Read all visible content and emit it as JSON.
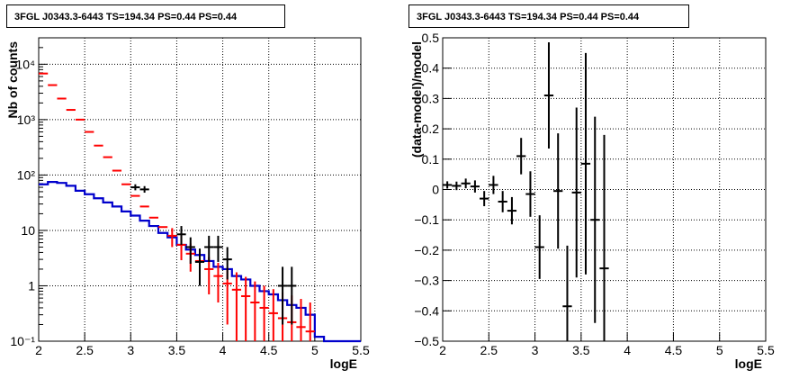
{
  "panels": {
    "left": {
      "title": "3FGL J0343.3-6443 TS=194.34 PS=0.44 PS=0.44"
    },
    "right": {
      "title": "3FGL J0343.3-6443 TS=194.34 PS=0.44 PS=0.44"
    }
  },
  "colors": {
    "data": "#000000",
    "model_total": "#ff0000",
    "background_model": "#0000cc",
    "grid": "#000000"
  },
  "chart_data": [
    {
      "type": "line",
      "title": "3FGL J0343.3-6443 TS=194.34 PS=0.44 PS=0.44",
      "xlabel": "logE",
      "ylabel": "Nb of counts",
      "xlim": [
        2,
        5.5
      ],
      "ylim": [
        0.1,
        30000
      ],
      "yscale": "log",
      "grid": true,
      "xticks": [
        "2",
        "2.5",
        "3",
        "3.5",
        "4",
        "4.5",
        "5",
        "5.5"
      ],
      "yticks": [
        "10⁻¹",
        "1",
        "10",
        "10²",
        "10³",
        "10⁴"
      ],
      "series": [
        {
          "kind": "points_with_errors",
          "color": "black",
          "x": [
            3.05,
            3.15,
            3.55,
            3.65,
            3.75,
            3.85,
            3.95,
            4.05,
            4.65,
            4.75
          ],
          "y": [
            60,
            55,
            8.5,
            5,
            2.7,
            5,
            5,
            3,
            1.0,
            1.0
          ],
          "yerr_low": [
            7,
            7,
            3,
            2.5,
            1.7,
            2.3,
            2.3,
            1.7,
            0.8,
            0.8
          ],
          "yerr_high": [
            8,
            8,
            3.5,
            2.5,
            2.0,
            3,
            3,
            2,
            1.2,
            1.2
          ],
          "xerr": 0.05
        },
        {
          "kind": "points_with_errors",
          "color": "red",
          "x": [
            2.05,
            2.15,
            2.25,
            2.35,
            2.45,
            2.55,
            2.65,
            2.75,
            2.85,
            2.95,
            3.05,
            3.15,
            3.25,
            3.35,
            3.45,
            3.55,
            3.65,
            3.75,
            3.85,
            3.95,
            4.05,
            4.15,
            4.25,
            4.35,
            4.45,
            4.55,
            4.65,
            4.75,
            4.85,
            4.95
          ],
          "y": [
            6800,
            4200,
            2400,
            1500,
            1000,
            600,
            340,
            210,
            120,
            68,
            42,
            27,
            17,
            11.5,
            8,
            5.5,
            3.8,
            2.8,
            2.0,
            1.5,
            1.1,
            0.85,
            0.65,
            0.5,
            0.4,
            0.32,
            0.26,
            0.22,
            0.18,
            0.15
          ],
          "yerr_low": [
            0,
            0,
            0,
            0,
            0,
            0,
            0,
            0,
            0,
            0,
            0,
            0,
            0,
            0,
            3,
            2.6,
            2.0,
            1.6,
            1.3,
            1.0,
            0.9,
            0.75,
            0.6,
            0.48,
            0.4,
            0.32,
            0.26,
            0.22,
            0.18,
            0.15
          ],
          "yerr_high": [
            0,
            0,
            0,
            0,
            0,
            0,
            0,
            0,
            0,
            0,
            0,
            0,
            0,
            0,
            3,
            2.6,
            2.0,
            1.6,
            1.3,
            1.1,
            1.0,
            0.9,
            0.8,
            0.7,
            0.6,
            0.55,
            0.5,
            0.45,
            0.4,
            0.35
          ],
          "xerr": 0.05
        },
        {
          "kind": "step",
          "color": "blue",
          "x_edges": [
            2.0,
            2.1,
            2.2,
            2.3,
            2.4,
            2.5,
            2.6,
            2.7,
            2.8,
            2.9,
            3.0,
            3.1,
            3.2,
            3.3,
            3.4,
            3.5,
            3.6,
            3.7,
            3.8,
            3.9,
            4.0,
            4.1,
            4.2,
            4.3,
            4.4,
            4.5,
            4.6,
            4.7,
            4.8,
            4.9,
            5.0,
            5.1,
            5.2,
            5.3,
            5.4,
            5.5
          ],
          "y": [
            68,
            75,
            72,
            64,
            52,
            45,
            38,
            32,
            27,
            22,
            18.5,
            15,
            12,
            9,
            7.5,
            5.5,
            4.5,
            3.6,
            2.8,
            2.2,
            2.0,
            1.5,
            1.3,
            1.0,
            0.8,
            0.7,
            0.55,
            0.45,
            0.4,
            0.3,
            0.12,
            0.1,
            0.1,
            0.1,
            0.1
          ]
        }
      ]
    },
    {
      "type": "scatter",
      "title": "3FGL J0343.3-6443 TS=194.34 PS=0.44 PS=0.44",
      "xlabel": "logE",
      "ylabel": "(data-model)/model",
      "xlim": [
        2,
        5.5
      ],
      "ylim": [
        -0.5,
        0.5
      ],
      "grid": true,
      "xticks": [
        "2",
        "2.5",
        "3",
        "3.5",
        "4",
        "4.5",
        "5",
        "5.5"
      ],
      "yticks": [
        "−0.5",
        "−0.4",
        "−0.3",
        "−0.2",
        "−0.1",
        "0",
        "0.1",
        "0.2",
        "0.3",
        "0.4",
        "0.5"
      ],
      "series": [
        {
          "color": "black",
          "x": [
            2.05,
            2.15,
            2.25,
            2.35,
            2.45,
            2.55,
            2.65,
            2.75,
            2.85,
            2.95,
            3.05,
            3.15,
            3.25,
            3.35,
            3.45,
            3.55,
            3.65,
            3.75
          ],
          "y": [
            0.015,
            0.012,
            0.02,
            0.01,
            -0.03,
            0.015,
            -0.04,
            -0.07,
            0.11,
            -0.015,
            -0.19,
            0.31,
            -0.005,
            -0.385,
            -0.01,
            0.085,
            -0.1,
            -0.26
          ],
          "yerr": [
            0.012,
            0.014,
            0.016,
            0.02,
            0.025,
            0.03,
            0.035,
            0.045,
            0.06,
            0.075,
            0.105,
            0.175,
            0.19,
            0.2,
            0.28,
            0.365,
            0.34,
            0.44
          ],
          "xerr": 0.05
        }
      ]
    }
  ]
}
